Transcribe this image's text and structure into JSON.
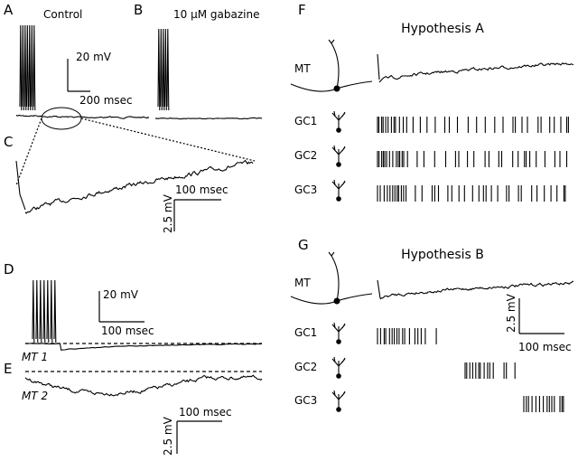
{
  "panels": {
    "A": {
      "label": "A",
      "title": "Control",
      "scale": {
        "y": "20 mV",
        "x": "200 msec"
      }
    },
    "B": {
      "label": "B",
      "title": "10 μM gabazine"
    },
    "C": {
      "label": "C",
      "scale": {
        "x": "100 msec",
        "y": "2.5 mV"
      }
    },
    "D": {
      "label": "D",
      "trace": "MT 1",
      "scale": {
        "y": "20 mV",
        "x": "100 msec"
      }
    },
    "E": {
      "label": "E",
      "trace": "MT 2",
      "scale": {
        "x": "100 msec",
        "y": "2.5 mV"
      }
    },
    "F": {
      "label": "F",
      "title": "Hypothesis A",
      "cells": [
        "MT",
        "GC1",
        "GC2",
        "GC3"
      ]
    },
    "G": {
      "label": "G",
      "title": "Hypothesis B",
      "cells": [
        "MT",
        "GC1",
        "GC2",
        "GC3"
      ],
      "scale": {
        "y": "2.5 mV",
        "x": "100 msec"
      }
    }
  }
}
